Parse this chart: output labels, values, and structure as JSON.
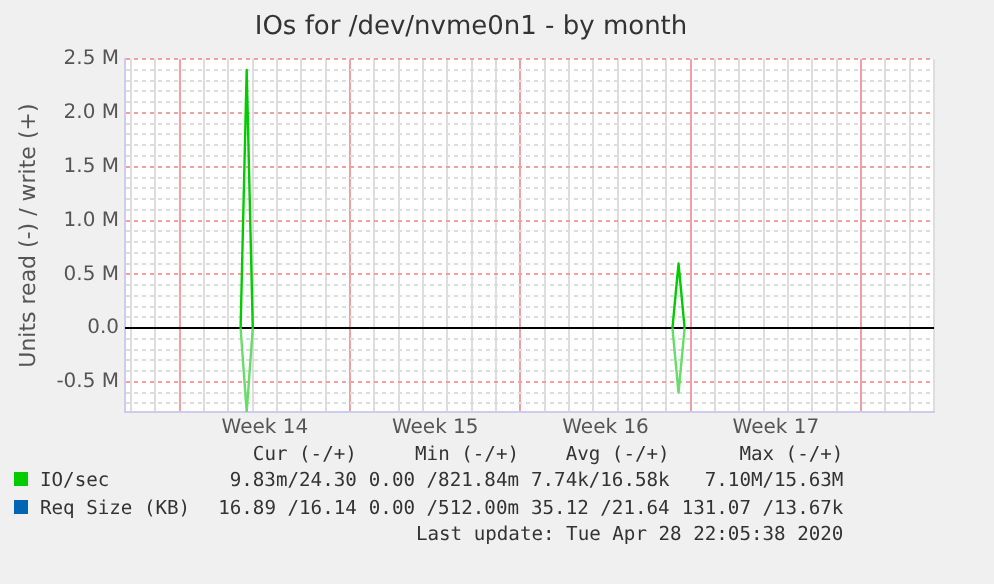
{
  "chart_data": {
    "type": "line",
    "title": "IOs for /dev/nvme0n1 - by month",
    "ylabel": "Units read (-) / write (+)",
    "categories": [
      null,
      null,
      null,
      null,
      null,
      null,
      null,
      null,
      null,
      null,
      null,
      null,
      null,
      null,
      null,
      null,
      null,
      null,
      null,
      null,
      null,
      null,
      null,
      "Week 14",
      null,
      null,
      null,
      null,
      null,
      null,
      null,
      null,
      null,
      null,
      null,
      null,
      null,
      null,
      null,
      null,
      null,
      null,
      null,
      null,
      null,
      null,
      null,
      null,
      null,
      null,
      null,
      "Week 15",
      null,
      null,
      null,
      null,
      null,
      null,
      null,
      null,
      null,
      null,
      null,
      null,
      null,
      null,
      null,
      null,
      null,
      null,
      null,
      null,
      null,
      null,
      null,
      null,
      null,
      null,
      null,
      "Week 16",
      null,
      null,
      null,
      null,
      null,
      null,
      null,
      null,
      null,
      null,
      null,
      null,
      null,
      null,
      null,
      null,
      null,
      null,
      null,
      null,
      null,
      null,
      null,
      null,
      null,
      null,
      null,
      "Week 17",
      null,
      null,
      null,
      null,
      null,
      null,
      null,
      null,
      null,
      null,
      null,
      null,
      null,
      null,
      null,
      null,
      null,
      null,
      null,
      null,
      null,
      null,
      null,
      null,
      null,
      null
    ],
    "series": [
      {
        "name": "IO/sec",
        "color": "#00cc00",
        "values": [
          null,
          null,
          null,
          null,
          null,
          null,
          null,
          null,
          null,
          null,
          null,
          null,
          null,
          null,
          null,
          null,
          null,
          null,
          null,
          0,
          2.4,
          0,
          null,
          null,
          null,
          null,
          null,
          null,
          null,
          null,
          null,
          null,
          null,
          null,
          null,
          null,
          null,
          null,
          null,
          null,
          null,
          null,
          null,
          null,
          null,
          null,
          null,
          null,
          null,
          null,
          null,
          null,
          null,
          null,
          null,
          null,
          null,
          null,
          null,
          null,
          null,
          null,
          null,
          null,
          null,
          null,
          null,
          null,
          null,
          null,
          null,
          null,
          null,
          null,
          null,
          null,
          null,
          null,
          null,
          null,
          null,
          null,
          null,
          null,
          null,
          null,
          null,
          null,
          null,
          null,
          0,
          0.6,
          0,
          null,
          null,
          null,
          null,
          null,
          null,
          null,
          null,
          null,
          null,
          null,
          null,
          null,
          null,
          null,
          null,
          null,
          null,
          null,
          null,
          null,
          null,
          null,
          null,
          null,
          null,
          null,
          null,
          null,
          null,
          null,
          null,
          null,
          null,
          null,
          null,
          null,
          null,
          null,
          null,
          null
        ]
      },
      {
        "color": "#66dd66",
        "values": [
          null,
          null,
          null,
          null,
          null,
          null,
          null,
          null,
          null,
          null,
          null,
          null,
          null,
          null,
          null,
          null,
          null,
          null,
          null,
          0,
          -0.78,
          0,
          null,
          null,
          null,
          null,
          null,
          null,
          null,
          null,
          null,
          null,
          null,
          null,
          null,
          null,
          null,
          null,
          null,
          null,
          null,
          null,
          null,
          null,
          null,
          null,
          null,
          null,
          null,
          null,
          null,
          null,
          null,
          null,
          null,
          null,
          null,
          null,
          null,
          null,
          null,
          null,
          null,
          null,
          null,
          null,
          null,
          null,
          null,
          null,
          null,
          null,
          null,
          null,
          null,
          null,
          null,
          null,
          null,
          null,
          null,
          null,
          null,
          null,
          null,
          null,
          null,
          null,
          null,
          null,
          0,
          -0.6,
          0,
          null,
          null,
          null,
          null,
          null,
          null,
          null,
          null,
          null,
          null,
          null,
          null,
          null,
          null,
          null,
          null,
          null,
          null,
          null,
          null,
          null,
          null,
          null,
          null,
          null,
          null,
          null,
          null,
          null,
          null,
          null,
          null,
          null,
          null,
          null,
          null,
          null,
          null,
          null,
          null,
          null
        ]
      },
      {
        "name": "Req Size (KB)",
        "color": "#0066b3",
        "values": [
          null,
          null,
          null,
          null,
          null,
          null,
          null,
          null,
          null,
          null,
          null,
          null,
          null,
          null,
          null,
          null,
          null,
          null,
          null,
          null,
          null,
          null,
          null,
          null,
          null,
          null,
          null,
          null,
          null,
          null,
          null,
          null,
          null,
          null,
          null,
          null,
          null,
          null,
          null,
          null,
          null,
          null,
          null,
          null,
          null,
          null,
          null,
          null,
          null,
          null,
          null,
          null,
          null,
          null,
          null,
          null,
          null,
          null,
          null,
          null,
          null,
          null,
          null,
          null,
          null,
          null,
          null,
          null,
          null,
          null,
          null,
          null,
          null,
          null,
          null,
          null,
          null,
          null,
          null,
          null,
          null,
          null,
          null,
          null,
          null,
          null,
          null,
          null,
          null,
          null,
          null,
          null,
          null,
          null,
          null,
          null,
          null,
          null,
          null,
          null,
          null,
          null,
          null,
          null,
          null,
          null,
          null,
          null,
          null,
          null,
          null,
          null,
          null,
          null,
          null,
          null,
          null,
          null,
          null,
          null,
          null,
          null,
          null,
          null,
          null,
          null,
          null,
          null,
          null,
          null,
          null,
          null,
          null,
          null
        ]
      }
    ],
    "ylim": [
      -0.78,
      2.5
    ],
    "yticks": [
      {
        "value": -0.5,
        "label": "-0.5 M"
      },
      {
        "value": 0,
        "label": "0.0"
      },
      {
        "value": 0.5,
        "label": "0.5 M"
      },
      {
        "value": 1,
        "label": "1.0 M"
      },
      {
        "value": 1.5,
        "label": "1.5 M"
      },
      {
        "value": 2,
        "label": "2.0 M"
      },
      {
        "value": 2.5,
        "label": "2.5 M"
      }
    ],
    "grid": true,
    "legend": "bottom left",
    "marker": "none",
    "line_style": "solid",
    "annotations": [
      "Cur (-/+)",
      "Min (-/+)",
      "Avg (-/+)",
      "Max (-/+)",
      "9.83m/24.30",
      "0.00 /821.84m",
      "7.74k/16.58k",
      "7.10M/15.63M",
      "16.89 /16.14",
      "0.00 /512.00m",
      "35.12 /21.64",
      "131.07 /13.67k",
      "Last update: Tue Apr 28 22:05:38 2020"
    ]
  }
}
